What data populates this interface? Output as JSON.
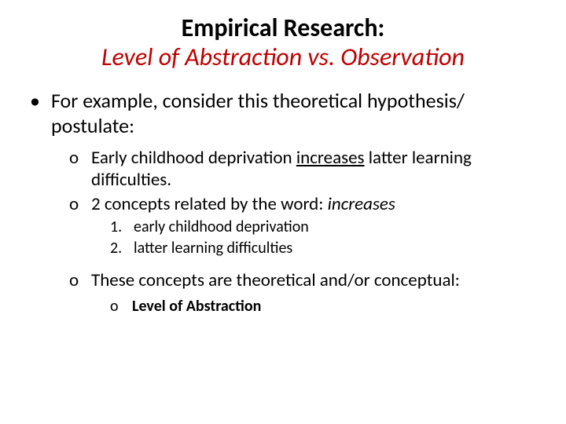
{
  "colors": {
    "background": "#ffffff",
    "text": "#000000",
    "accent": "#c00000"
  },
  "typography": {
    "family": "Calibri",
    "title_main_size": 32,
    "title_sub_size": 32,
    "l1_size": 26,
    "l2_size": 23,
    "l3_size": 20,
    "l4_size": 20
  },
  "title": {
    "main": "Empirical Research:",
    "sub": "Level of Abstraction vs. Observation"
  },
  "markers": {
    "l1": "•",
    "l2": "o",
    "l3a": "1.",
    "l3b": "2.",
    "l4": "o"
  },
  "content": {
    "l1_text": "For example, consider this theoretical hypothesis/ postulate:",
    "l2a_pre": "Early childhood deprivation ",
    "l2a_underlined": "increases",
    "l2a_post": " latter learning difficulties.",
    "l2b_pre": "2 concepts related by the word:  ",
    "l2b_italic": "increases",
    "l3a": "early childhood deprivation",
    "l3b": "latter learning difficulties",
    "l2c": "These concepts are theoretical and/or conceptual:",
    "l4a": "Level of Abstraction"
  }
}
